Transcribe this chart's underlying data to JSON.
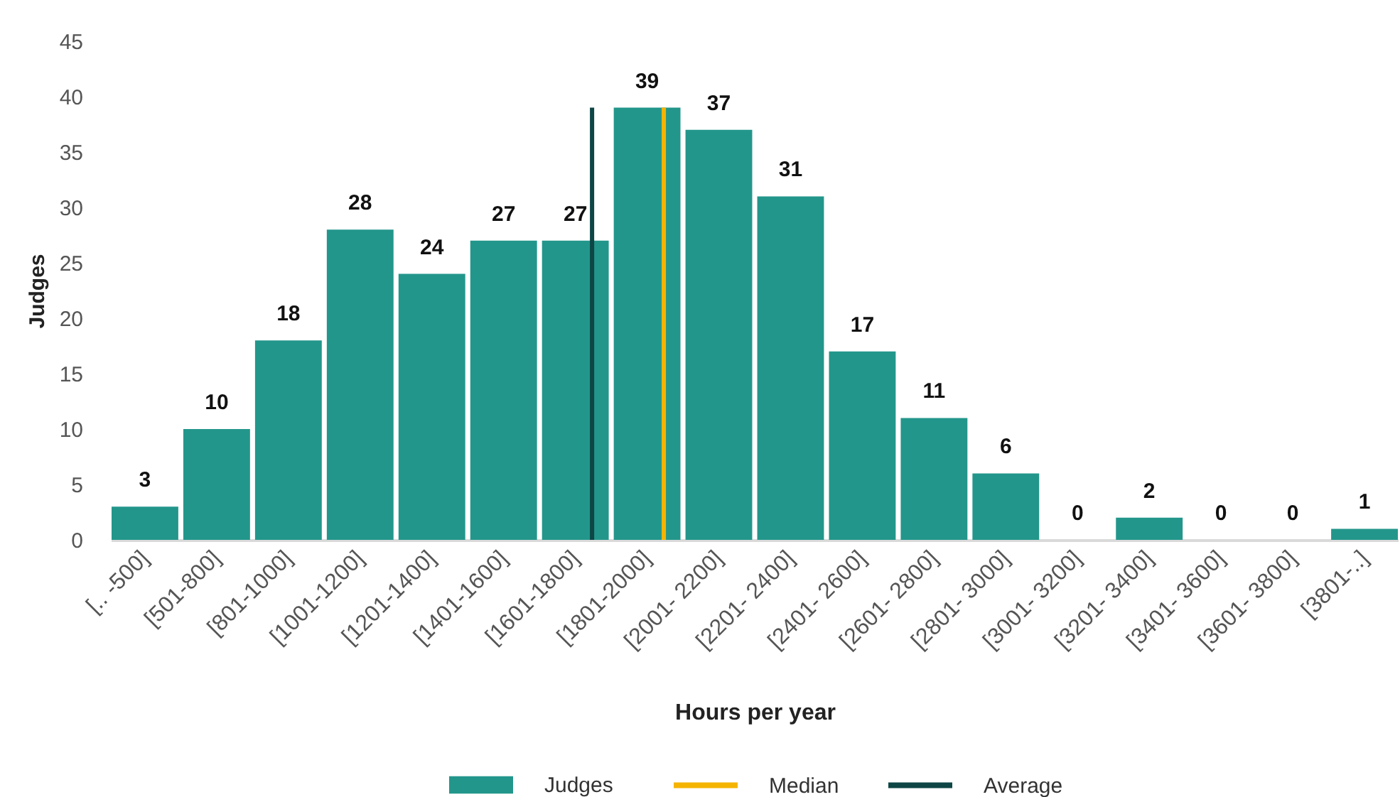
{
  "chart_data": {
    "type": "bar",
    "xlabel": "Hours per year",
    "ylabel": "Judges",
    "categories": [
      "[.. -500]",
      "[501-800]",
      "[801-1000]",
      "[1001-1200]",
      "[1201-1400]",
      "[1401-1600]",
      "[1601-1800]",
      "[1801-2000]",
      "[2001- 2200]",
      "[2201- 2400]",
      "[2401- 2600]",
      "[2601- 2800]",
      "[2801- 3000]",
      "[3001- 3200]",
      "[3201- 3400]",
      "[3401- 3600]",
      "[3601- 3800]",
      "[3801-..]"
    ],
    "series": [
      {
        "name": "Judges",
        "color": "#23968b",
        "values": [
          3,
          10,
          18,
          28,
          24,
          27,
          27,
          39,
          37,
          31,
          17,
          11,
          6,
          0,
          2,
          0,
          0,
          1
        ]
      }
    ],
    "ylim": [
      0,
      45
    ],
    "yticks": [
      0,
      5,
      10,
      15,
      20,
      25,
      30,
      35,
      40,
      45
    ],
    "ref_lines": [
      {
        "axis": "x",
        "value": "[1801-2000]",
        "label": "Median",
        "color": "#f5b400"
      },
      {
        "axis": "x",
        "value": "[1601-1800]",
        "label": "Average",
        "color": "#0e4545"
      }
    ],
    "data_labels": true,
    "grid": false,
    "legend": "bottom"
  }
}
